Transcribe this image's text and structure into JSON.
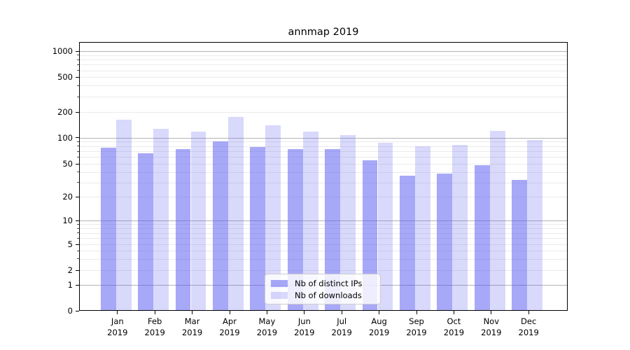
{
  "title": "annmap 2019",
  "chart_data": {
    "type": "bar",
    "title": "annmap 2019",
    "categories": [
      "Jan 2019",
      "Feb 2019",
      "Mar 2019",
      "Apr 2019",
      "May 2019",
      "Jun 2019",
      "Jul 2019",
      "Aug 2019",
      "Sep 2019",
      "Oct 2019",
      "Nov 2019",
      "Dec 2019"
    ],
    "series": [
      {
        "name": "Nb of distinct IPs",
        "color": "rgba(82,82,242,0.5)",
        "values": [
          78,
          68,
          75,
          93,
          80,
          76,
          75,
          56,
          37,
          39,
          49,
          33
        ]
      },
      {
        "name": "Nb of downloads",
        "color": "rgba(82,82,242,0.22)",
        "values": [
          165,
          130,
          120,
          180,
          143,
          120,
          110,
          89,
          81,
          85,
          123,
          96
        ]
      }
    ],
    "yscale": "symlog",
    "yticks": [
      0,
      1,
      2,
      5,
      10,
      20,
      50,
      100,
      200,
      500,
      1000
    ],
    "ylim": [
      0,
      1400
    ],
    "xlabel": "",
    "ylabel": "",
    "grid": "horizontal major+minor",
    "legend_position": "lower center"
  },
  "x_axis": {
    "months": [
      "Jan",
      "Feb",
      "Mar",
      "Apr",
      "May",
      "Jun",
      "Jul",
      "Aug",
      "Sep",
      "Oct",
      "Nov",
      "Dec"
    ],
    "year": "2019"
  },
  "y_axis": {
    "ticks": [
      {
        "label": "0",
        "value": 0
      },
      {
        "label": "1",
        "value": 1
      },
      {
        "label": "2",
        "value": 2
      },
      {
        "label": "5",
        "value": 5
      },
      {
        "label": "10",
        "value": 10
      },
      {
        "label": "20",
        "value": 20
      },
      {
        "label": "50",
        "value": 50
      },
      {
        "label": "100",
        "value": 100
      },
      {
        "label": "200",
        "value": 200
      },
      {
        "label": "500",
        "value": 500
      },
      {
        "label": "1000",
        "value": 1000
      }
    ]
  },
  "legend": {
    "items": [
      {
        "label": "Nb of distinct IPs",
        "color": "rgba(82,82,242,0.5)"
      },
      {
        "label": "Nb of downloads",
        "color": "rgba(82,82,242,0.22)"
      }
    ]
  },
  "colors": {
    "bar_distinct_ips": "rgba(82,82,242,0.5)",
    "bar_downloads": "rgba(82,82,242,0.22)",
    "grid_major": "#b4b4b4",
    "grid_minor": "#ebebeb",
    "spine": "#000000",
    "legend_border": "#cccccc"
  }
}
